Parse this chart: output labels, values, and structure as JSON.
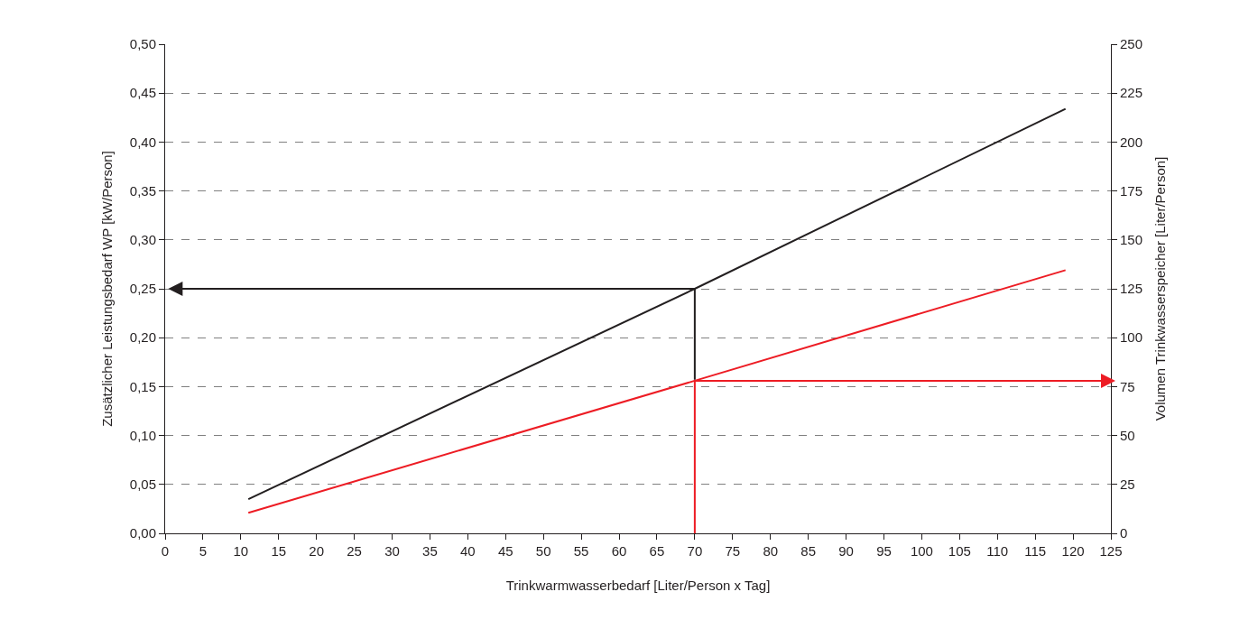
{
  "chart_data": {
    "type": "line",
    "xlabel": "Trinkwarmwasserbedarf [Liter/Person x Tag]",
    "ylabel": "Zusätzlicher Leistungsbedarf WP [kW/Person]",
    "y2label": "Volumen Trinkwasserspeicher [Liter/Person]",
    "xlim": [
      0,
      125
    ],
    "xticks": [
      0,
      5,
      10,
      15,
      20,
      25,
      30,
      35,
      40,
      45,
      50,
      55,
      60,
      65,
      70,
      75,
      80,
      85,
      90,
      95,
      100,
      105,
      110,
      115,
      120,
      125
    ],
    "ylim": [
      0,
      0.5
    ],
    "yticks": [
      {
        "value": 0,
        "label": "0,00"
      },
      {
        "value": 0.05,
        "label": "0,05"
      },
      {
        "value": 0.1,
        "label": "0,10"
      },
      {
        "value": 0.15,
        "label": "0,15"
      },
      {
        "value": 0.2,
        "label": "0,20"
      },
      {
        "value": 0.25,
        "label": "0,25"
      },
      {
        "value": 0.3,
        "label": "0,30"
      },
      {
        "value": 0.35,
        "label": "0,35"
      },
      {
        "value": 0.4,
        "label": "0,40"
      },
      {
        "value": 0.45,
        "label": "0,45"
      },
      {
        "value": 0.5,
        "label": "0,50"
      }
    ],
    "y2lim": [
      0,
      250
    ],
    "y2ticks": [
      0,
      25,
      50,
      75,
      100,
      125,
      150,
      175,
      200,
      225,
      250
    ],
    "grid": "y",
    "line_style": "solid",
    "series": [
      {
        "color": "#231f20",
        "x": [
          11,
          70,
          119
        ],
        "values": [
          0.035,
          0.25,
          0.434
        ]
      },
      {
        "color": "#ed1c24",
        "axis": "y2",
        "x": [
          11,
          70,
          119
        ],
        "values": [
          10.5,
          78,
          134.5
        ]
      },
      {
        "color": "#231f20",
        "x": [
          70,
          70,
          1
        ],
        "values": [
          0.157,
          0.25,
          0.25
        ]
      },
      {
        "color": "#ed1c24",
        "axis": "y2",
        "x": [
          70,
          70,
          125
        ],
        "values": [
          0,
          78,
          78
        ]
      }
    ]
  }
}
